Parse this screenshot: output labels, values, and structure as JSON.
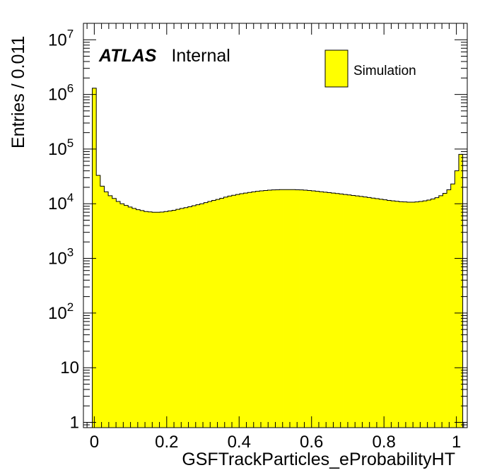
{
  "chart_data": {
    "type": "bar",
    "histtype": "step-filled",
    "title": "",
    "xlabel": "GSFTrackParticles_eProbabilityHT",
    "ylabel": "Entries / 0.011",
    "xlim": [
      -0.03,
      1.03
    ],
    "ylim": [
      0.8,
      20000000
    ],
    "yscale": "log",
    "x_ticks": [
      {
        "value": 0,
        "label": "0"
      },
      {
        "value": 0.2,
        "label": "0.2"
      },
      {
        "value": 0.4,
        "label": "0.4"
      },
      {
        "value": 0.6,
        "label": "0.6"
      },
      {
        "value": 0.8,
        "label": "0.8"
      },
      {
        "value": 1,
        "label": "1"
      }
    ],
    "y_ticks": [
      {
        "value": 1,
        "base": "1",
        "exp": ""
      },
      {
        "value": 10,
        "base": "10",
        "exp": ""
      },
      {
        "value": 100,
        "base": "10",
        "exp": "2"
      },
      {
        "value": 1000,
        "base": "10",
        "exp": "3"
      },
      {
        "value": 10000,
        "base": "10",
        "exp": "4"
      },
      {
        "value": 100000,
        "base": "10",
        "exp": "5"
      },
      {
        "value": 1000000,
        "base": "10",
        "exp": "6"
      },
      {
        "value": 10000000,
        "base": "10",
        "exp": "7"
      }
    ],
    "fill_color": "#ffff00",
    "line_color": "#000000",
    "bin_width": 0.011,
    "x_start": -0.0055,
    "series": [
      {
        "name": "Simulation",
        "values": [
          1300000,
          33000,
          21000,
          16500,
          14000,
          12500,
          11000,
          10000,
          9300,
          8700,
          8200,
          7800,
          7500,
          7200,
          7100,
          7000,
          7000,
          7050,
          7200,
          7400,
          7600,
          7900,
          8200,
          8500,
          8800,
          9200,
          9600,
          10000,
          10500,
          11000,
          11500,
          12000,
          12600,
          13200,
          13800,
          14300,
          14800,
          15300,
          15700,
          16100,
          16500,
          16900,
          17200,
          17500,
          17700,
          17900,
          18000,
          18100,
          18100,
          18100,
          18100,
          18000,
          17900,
          17700,
          17500,
          17200,
          16900,
          16600,
          16300,
          16000,
          15700,
          15400,
          15100,
          14800,
          14500,
          14200,
          13900,
          13600,
          13300,
          13000,
          12700,
          12400,
          12100,
          11800,
          11500,
          11300,
          11100,
          10900,
          10800,
          10700,
          10700,
          10800,
          11000,
          11300,
          11700,
          12200,
          12900,
          14000,
          15500,
          18000,
          23000,
          40000,
          80000
        ]
      }
    ],
    "legend": {
      "position": "top-right",
      "entries": [
        "Simulation"
      ]
    },
    "annotation": {
      "bold_italic": "ATLAS",
      "plain": "Internal"
    },
    "grid": false
  }
}
